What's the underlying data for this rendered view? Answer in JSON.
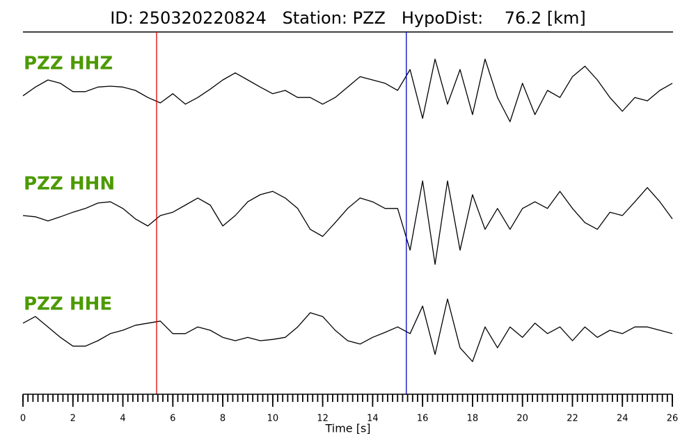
{
  "chart_data": {
    "type": "seismogram",
    "title": "ID: 250320220824   Station: PZZ   HypoDist:    76.2 [km]",
    "xlabel": "Time [s]",
    "xlim": [
      0,
      26
    ],
    "xticks": [
      0,
      2,
      4,
      6,
      8,
      10,
      12,
      14,
      16,
      18,
      20,
      22,
      24,
      26
    ],
    "xminor_step": 0.2,
    "x": [
      0,
      0.5,
      1,
      1.5,
      2,
      2.5,
      3,
      3.5,
      4,
      4.5,
      5,
      5.5,
      6,
      6.5,
      7,
      7.5,
      8,
      8.5,
      9,
      9.5,
      10,
      10.5,
      11,
      11.5,
      12,
      12.5,
      13,
      13.5,
      14,
      14.5,
      15,
      15.5,
      16,
      16.5,
      17,
      17.5,
      18,
      18.5,
      19,
      19.5,
      20,
      20.5,
      21,
      21.5,
      22,
      22.5,
      23,
      23.5,
      24,
      24.5,
      25,
      25.5,
      26
    ],
    "series": [
      {
        "name": "PZZ HHZ",
        "color": "#000000",
        "label_color": "#4c9a00",
        "values": [
          -0.13,
          0.08,
          0.25,
          0.17,
          -0.03,
          -0.03,
          0.08,
          0.1,
          0.08,
          0,
          -0.17,
          -0.3,
          -0.08,
          -0.33,
          -0.17,
          0.03,
          0.25,
          0.42,
          0.25,
          0.08,
          -0.08,
          0,
          -0.17,
          -0.17,
          -0.33,
          -0.17,
          0.08,
          0.33,
          0.25,
          0.17,
          0,
          0.5,
          -0.67,
          0.75,
          -0.33,
          0.5,
          -0.58,
          0.75,
          -0.17,
          -0.75,
          0.17,
          -0.58,
          0,
          -0.17,
          0.33,
          0.58,
          0.25,
          -0.17,
          -0.5,
          -0.17,
          -0.25,
          0,
          0.17
        ]
      },
      {
        "name": "PZZ HHN",
        "color": "#000000",
        "label_color": "#4c9a00",
        "values": [
          0,
          -0.03,
          -0.13,
          -0.03,
          0.08,
          0.17,
          0.3,
          0.33,
          0.17,
          -0.08,
          -0.25,
          0,
          0.08,
          0.25,
          0.42,
          0.25,
          -0.25,
          0,
          0.33,
          0.5,
          0.58,
          0.42,
          0.17,
          -0.33,
          -0.5,
          -0.17,
          0.17,
          0.42,
          0.33,
          0.17,
          0.17,
          -0.83,
          0.83,
          -1.17,
          0.83,
          -0.83,
          0.5,
          -0.33,
          0.17,
          -0.33,
          0.17,
          0.33,
          0.17,
          0.58,
          0.17,
          -0.17,
          -0.33,
          0.08,
          0,
          0.33,
          0.67,
          0.33,
          -0.08
        ]
      },
      {
        "name": "PZZ HHE",
        "color": "#000000",
        "label_color": "#4c9a00",
        "values": [
          0.17,
          0.33,
          0.08,
          -0.17,
          -0.38,
          -0.38,
          -0.25,
          -0.08,
          0,
          0.12,
          0.17,
          0.22,
          -0.08,
          -0.08,
          0.08,
          0,
          -0.17,
          -0.25,
          -0.17,
          -0.25,
          -0.22,
          -0.17,
          0.08,
          0.42,
          0.33,
          0,
          -0.25,
          -0.33,
          -0.17,
          -0.05,
          0.08,
          -0.08,
          0.58,
          -0.58,
          0.75,
          -0.42,
          -0.75,
          0.08,
          -0.42,
          0.08,
          -0.17,
          0.17,
          -0.08,
          0.08,
          -0.25,
          0.08,
          -0.17,
          0,
          -0.08,
          0.08,
          0.08,
          0,
          -0.08
        ]
      }
    ],
    "picks": [
      {
        "x": 5.35,
        "color": "#e00000"
      },
      {
        "x": 15.35,
        "color": "#0000c0"
      }
    ]
  }
}
